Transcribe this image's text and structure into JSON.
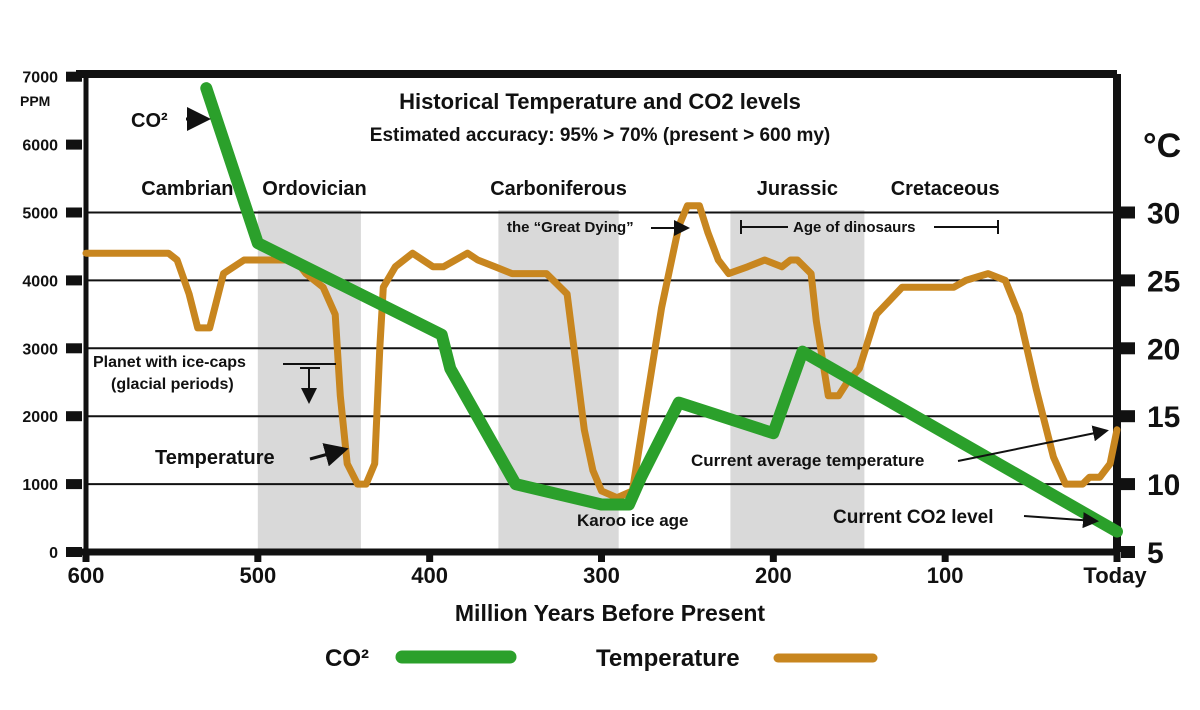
{
  "chart_data": {
    "type": "line",
    "title": "Historical Temperature and CO2 levels",
    "subtitle": "Estimated accuracy: 95% > 70% (present > 600 my)",
    "xlabel": "Million Years Before Present",
    "ylabel_left_unit": "PPM",
    "ylabel_right_unit": "°C",
    "x_ticks": [
      {
        "value": 600,
        "label": "600"
      },
      {
        "value": 500,
        "label": "500"
      },
      {
        "value": 400,
        "label": "400"
      },
      {
        "value": 300,
        "label": "300"
      },
      {
        "value": 200,
        "label": "200"
      },
      {
        "value": 100,
        "label": "100"
      },
      {
        "value": 0,
        "label": "Today"
      }
    ],
    "xlim": [
      600,
      0
    ],
    "ylim_left": [
      0,
      7000
    ],
    "ylim_right": [
      5,
      35
    ],
    "y_ticks_left": [
      "0",
      "1000",
      "2000",
      "3000",
      "4000",
      "5000",
      "6000",
      "7000"
    ],
    "y_ticks_right": [
      "5",
      "10",
      "15",
      "20",
      "25",
      "30"
    ],
    "gridlines_ppm": [
      1000,
      2000,
      3000,
      4000,
      5000
    ],
    "glacial_bands_mya": [
      [
        500,
        440
      ],
      [
        360,
        290
      ],
      [
        225,
        147
      ]
    ],
    "periods": [
      {
        "name": "Cambrian",
        "x": 541
      },
      {
        "name": "Ordovician",
        "x": 467
      },
      {
        "name": "Carboniferous",
        "x": 325
      },
      {
        "name": "Jurassic",
        "x": 186
      },
      {
        "name": "Cretaceous",
        "x": 100
      }
    ],
    "series": [
      {
        "name": "CO²",
        "color": "#2ba02b",
        "axis": "left",
        "x": [
          530,
          500,
          393,
          388,
          350,
          300,
          284,
          277,
          255,
          200,
          183,
          0
        ],
        "y": [
          6830,
          4550,
          3200,
          2700,
          1000,
          700,
          700,
          1100,
          2200,
          1750,
          2950,
          300
        ]
      },
      {
        "name": "Temperature",
        "color": "#c8861f",
        "axis": "right",
        "x": [
          600,
          552,
          547,
          540,
          535,
          528,
          520,
          508,
          490,
          478,
          472,
          462,
          455,
          452,
          448,
          442,
          437,
          432,
          429,
          427,
          420,
          410,
          398,
          392,
          378,
          372,
          362,
          352,
          343,
          332,
          320,
          310,
          305,
          300,
          291,
          282,
          277,
          265,
          255,
          250,
          243,
          238,
          232,
          226,
          215,
          205,
          195,
          190,
          186,
          178,
          175,
          168,
          162,
          157,
          150,
          140,
          125,
          117,
          110,
          95,
          88,
          75,
          65,
          57,
          47,
          37,
          30,
          20,
          16,
          10,
          4,
          0
        ],
        "y": [
          27,
          27,
          26.5,
          24,
          21.5,
          21.5,
          25.5,
          26.5,
          26.5,
          26.5,
          25.5,
          24.5,
          22.5,
          16.5,
          11.5,
          10,
          10,
          11.5,
          20,
          24.5,
          26,
          27,
          26,
          26,
          27,
          26.5,
          26,
          25.5,
          25.5,
          25.5,
          24,
          14,
          11,
          9.5,
          9,
          9.5,
          13.5,
          23,
          29,
          30.5,
          30.5,
          28.5,
          26.5,
          25.5,
          26,
          26.5,
          26,
          26.5,
          26.5,
          25.5,
          22,
          16.5,
          16.5,
          17.5,
          18.5,
          22.5,
          24.5,
          24.5,
          24.5,
          24.5,
          25,
          25.5,
          25,
          22.5,
          17,
          12,
          10,
          10,
          10.5,
          10.5,
          11.5,
          14
        ]
      }
    ],
    "annotations": {
      "co2_marker": "CO²",
      "great_dying": "the “Great Dying”",
      "age_of_dinosaurs": "Age of dinosaurs",
      "ice_caps_line1": "Planet with ice-caps",
      "ice_caps_line2": "(glacial periods)",
      "temperature_marker": "Temperature",
      "karoo": "Karoo ice age",
      "current_temp": "Current average temperature",
      "current_co2": "Current CO2 level"
    },
    "legend": {
      "placement": "bottom-center",
      "entries": [
        {
          "label": "CO²",
          "color": "#2ba02b"
        },
        {
          "label": "Temperature",
          "color": "#c8861f"
        }
      ]
    },
    "grid": true
  }
}
